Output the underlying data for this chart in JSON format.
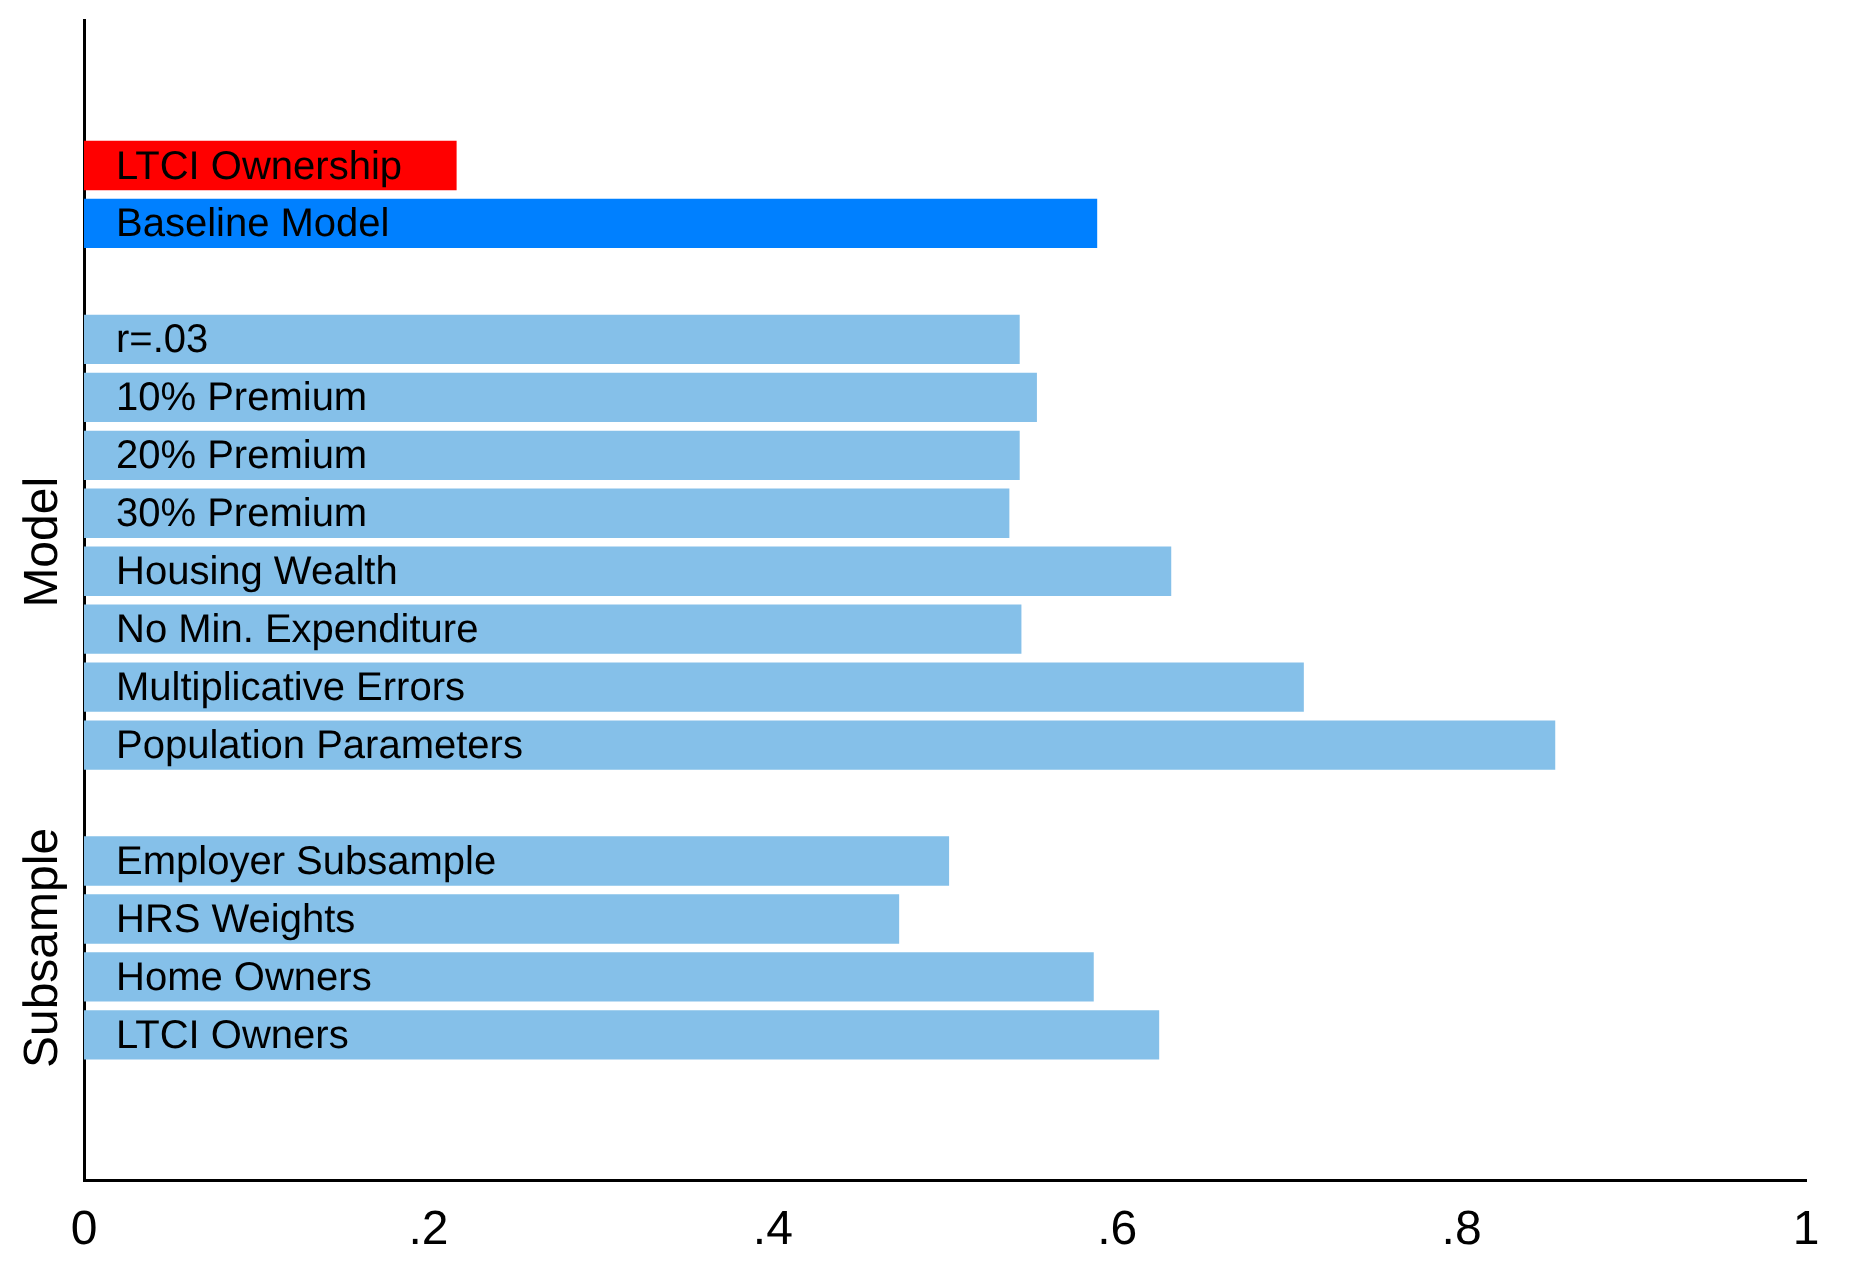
{
  "chart_data": {
    "type": "bar",
    "orientation": "horizontal",
    "categories": [
      "LTCI Ownership",
      "Baseline Model",
      null,
      "r=.03",
      "10% Premium",
      "20% Premium",
      "30% Premium",
      "Housing Wealth",
      "No Min. Expenditure",
      "Multiplicative Errors",
      "Population Parameters",
      null,
      "Employer Subsample",
      "HRS Weights",
      "Home Owners",
      "LTCI Owners"
    ],
    "values": [
      0.216,
      0.588,
      null,
      0.543,
      0.553,
      0.543,
      0.537,
      0.631,
      0.544,
      0.708,
      0.854,
      null,
      0.502,
      0.473,
      0.586,
      0.624
    ],
    "colors": [
      "#ff0000",
      "#0080ff",
      null,
      "#85c0e9",
      "#85c0e9",
      "#85c0e9",
      "#85c0e9",
      "#85c0e9",
      "#85c0e9",
      "#85c0e9",
      "#85c0e9",
      null,
      "#85c0e9",
      "#85c0e9",
      "#85c0e9",
      "#85c0e9"
    ],
    "xlim": [
      0,
      1
    ],
    "xticks": [
      {
        "value": 0,
        "label": "0"
      },
      {
        "value": 0.2,
        "label": ".2"
      },
      {
        "value": 0.4,
        "label": ".4"
      },
      {
        "value": 0.6,
        "label": ".6"
      },
      {
        "value": 0.8,
        "label": ".8"
      },
      {
        "value": 1,
        "label": "1"
      }
    ],
    "annotations": [
      "Model",
      "Subsample"
    ],
    "grid": false,
    "legend": false
  }
}
